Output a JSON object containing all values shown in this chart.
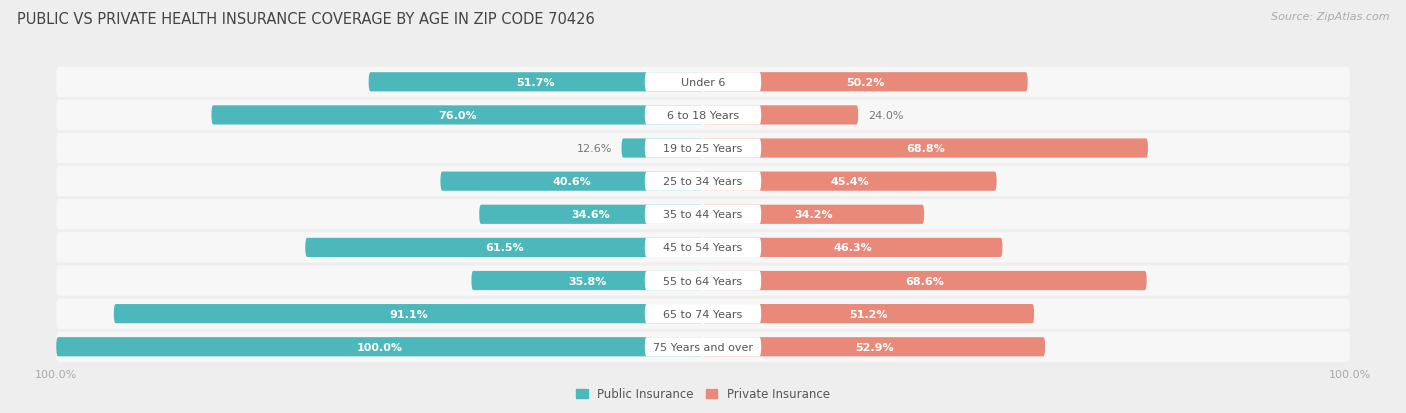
{
  "title": "PUBLIC VS PRIVATE HEALTH INSURANCE COVERAGE BY AGE IN ZIP CODE 70426",
  "source": "Source: ZipAtlas.com",
  "categories": [
    "Under 6",
    "6 to 18 Years",
    "19 to 25 Years",
    "25 to 34 Years",
    "35 to 44 Years",
    "45 to 54 Years",
    "55 to 64 Years",
    "65 to 74 Years",
    "75 Years and over"
  ],
  "public_values": [
    51.7,
    76.0,
    12.6,
    40.6,
    34.6,
    61.5,
    35.8,
    91.1,
    100.0
  ],
  "private_values": [
    50.2,
    24.0,
    68.8,
    45.4,
    34.2,
    46.3,
    68.6,
    51.2,
    52.9
  ],
  "public_color": "#4db8bb",
  "private_color": "#e8897a",
  "bg_color": "#eeeeee",
  "row_bg_color": "#f7f7f7",
  "axis_label_color": "#aaaaaa",
  "legend_label": [
    "Public Insurance",
    "Private Insurance"
  ],
  "title_fontsize": 10.5,
  "source_fontsize": 8,
  "bar_fontsize": 8,
  "category_fontsize": 8,
  "legend_fontsize": 8.5,
  "axis_tick_fontsize": 8,
  "x_max": 100.0,
  "pub_label_threshold": 25,
  "priv_label_threshold": 25
}
